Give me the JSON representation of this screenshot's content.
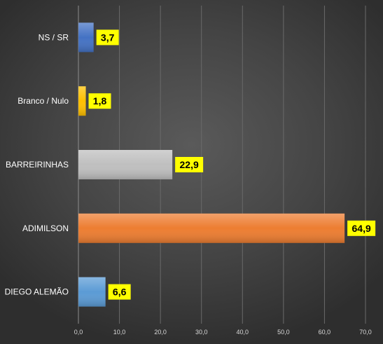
{
  "chart_data": {
    "type": "bar",
    "orientation": "horizontal",
    "categories": [
      "NS / SR",
      "Branco / Nulo",
      "BARREIRINHAS",
      "ADIMILSON",
      "DIEGO ALEMÃO"
    ],
    "values": [
      3.7,
      1.8,
      22.9,
      64.9,
      6.6
    ],
    "value_labels": [
      "3,7",
      "1,8",
      "22,9",
      "64,9",
      "6,6"
    ],
    "x_ticks": [
      0,
      10,
      20,
      30,
      40,
      50,
      60,
      70
    ],
    "x_tick_labels": [
      "0,0",
      "10,0",
      "20,0",
      "30,0",
      "40,0",
      "50,0",
      "60,0",
      "70,0"
    ],
    "xlim": [
      0,
      70
    ],
    "title": "",
    "xlabel": "",
    "ylabel": "",
    "grid": true,
    "legend": "none",
    "bar_colors": [
      "#4472c4",
      "#ffc000",
      "#bfbfbf",
      "#ed7d31",
      "#5b9bd5"
    ],
    "data_label_background": "#ffff00",
    "data_label_color": "#000000",
    "background_color": "#444444"
  }
}
